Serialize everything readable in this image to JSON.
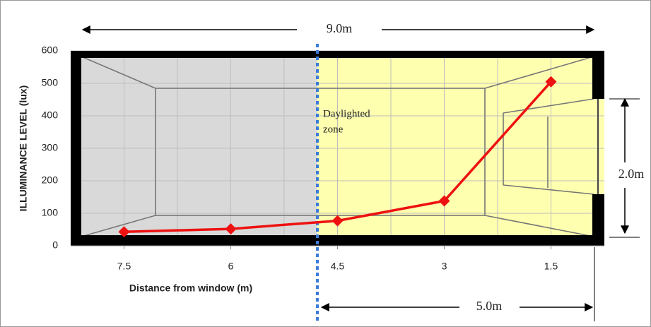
{
  "chart_data": {
    "type": "line",
    "x": [
      7.5,
      6,
      4.5,
      3,
      1.5
    ],
    "values": [
      43,
      52,
      77,
      138,
      505
    ],
    "color": "#ee1111",
    "xlim": [
      8.25,
      0.75
    ],
    "xticks": [
      7.5,
      6,
      4.5,
      3,
      1.5
    ],
    "xgrid": [
      7.5,
      6.75,
      6,
      5.25,
      4.5,
      3.75,
      3,
      2.25,
      1.5
    ],
    "ylim": [
      0,
      600
    ],
    "yticks": [
      0,
      100,
      200,
      300,
      400,
      500,
      600
    ],
    "grid": true,
    "xlabel": "Distance from window (m)",
    "ylabel": "ILLUMINANCE  LEVEL (lux)",
    "annotations": {
      "room_length": "9.0m",
      "zone_line1": "Daylighted",
      "zone_line2": "zone",
      "window_height": "2.0m",
      "zone_depth": "5.0m"
    }
  }
}
